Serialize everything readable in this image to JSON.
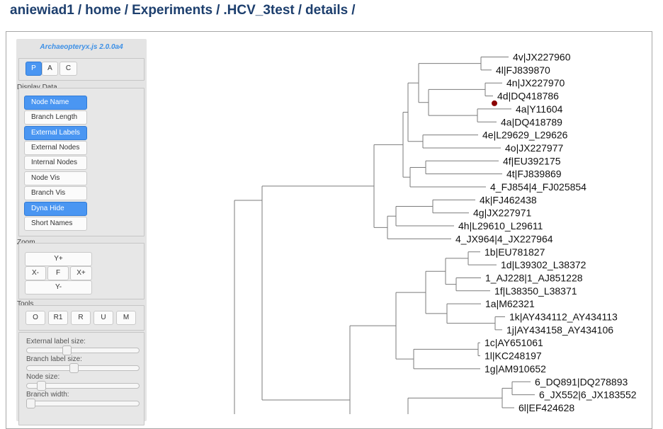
{
  "breadcrumb": [
    "aniewiad1",
    "home",
    "Experiments",
    ".HCV_3test",
    "details"
  ],
  "breadcrumb_separator": "/",
  "panel": {
    "title": "Archaeopteryx.js 2.0.0a4",
    "view_modes": [
      {
        "label": "P",
        "active": true
      },
      {
        "label": "A",
        "active": false
      },
      {
        "label": "C",
        "active": false
      }
    ],
    "display_data": {
      "label": "Display Data",
      "buttons": [
        {
          "label": "Node Name",
          "active": true
        },
        {
          "label": "Branch Length",
          "active": false
        },
        {
          "label": "External Labels",
          "active": true
        },
        {
          "label": "External Nodes",
          "active": false
        },
        {
          "label": "Internal Nodes",
          "active": false
        },
        {
          "label": "Node Vis",
          "active": false
        },
        {
          "label": "Branch Vis",
          "active": false
        },
        {
          "label": "Dyna Hide",
          "active": true
        },
        {
          "label": "Short Names",
          "active": false
        }
      ]
    },
    "zoom": {
      "label": "Zoom",
      "y_plus": "Y+",
      "x_minus": "X-",
      "fit": "F",
      "x_plus": "X+",
      "y_minus": "Y-"
    },
    "tools": {
      "label": "Tools",
      "buttons": [
        "O",
        "R1",
        "R",
        "U",
        "M"
      ]
    },
    "sliders": [
      {
        "label": "External label size:",
        "value": 0.35
      },
      {
        "label": "Branch label size:",
        "value": 0.42
      },
      {
        "label": "Node size:",
        "value": 0.1
      },
      {
        "label": "Branch width:",
        "value": 0.0
      }
    ]
  },
  "tree": {
    "line_color": "#7b7b7b",
    "selected_node_color": "#8b0000",
    "leaves": [
      "4v|JX227960",
      "4l|FJ839870",
      "4n|JX227970",
      "4d|DQ418786",
      "4a|Y11604",
      "4a|DQ418789",
      "4e|L29629_L29626",
      "4o|JX227977",
      "4f|EU392175",
      "4t|FJ839869",
      "4_FJ854|4_FJ025854",
      "4k|FJ462438",
      "4g|JX227971",
      "4h|L29610_L29611",
      "4_JX964|4_JX227964",
      "1b|EU781827",
      "1d|L39302_L38372",
      "1_AJ228|1_AJ851228",
      "1f|L38350_L38371",
      "1a|M62321",
      "1k|AY434112_AY434113",
      "1j|AY434158_AY434106",
      "1c|AY651061",
      "1l|KC248197",
      "1g|AM910652",
      "6_DQ891|DQ278893",
      "6_JX552|6_JX183552",
      "6l|EF424628"
    ]
  }
}
